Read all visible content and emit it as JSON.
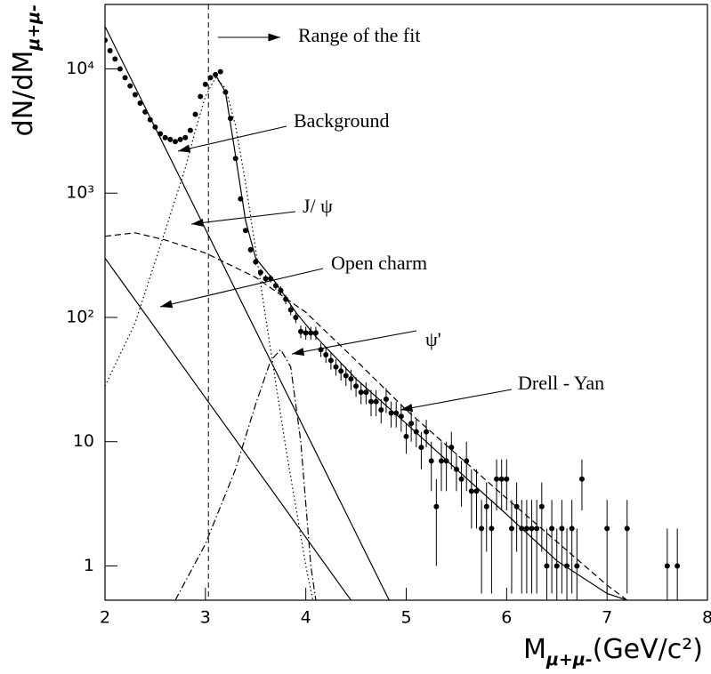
{
  "chart_data": {
    "type": "scatter",
    "ylabel": {
      "main": "dN/dM",
      "sub": "μ+μ-"
    },
    "xlabel": {
      "main": "M",
      "sub": "μ+μ-",
      "rest": "(GeV/c²)"
    },
    "log_y": true,
    "xlim": [
      2,
      8
    ],
    "ylim": [
      0.53,
      33000
    ],
    "xticks": [
      2,
      3,
      4,
      5,
      6,
      7,
      8
    ],
    "yticks": [
      1,
      10,
      {
        "value": 100,
        "label": "10²"
      },
      {
        "value": 1000,
        "label": "10³"
      },
      {
        "value": 10000,
        "label": "10⁴"
      }
    ],
    "fit_range_start": 3.03,
    "annotations": [
      "Range of the fit",
      "Background",
      "J/ ψ",
      "Open charm",
      "ψ'",
      "Drell - Yan"
    ],
    "points": {
      "color": "#000000",
      "x": [
        2.0,
        2.05,
        2.1,
        2.15,
        2.2,
        2.25,
        2.3,
        2.35,
        2.4,
        2.45,
        2.5,
        2.55,
        2.6,
        2.65,
        2.7,
        2.75,
        2.8,
        2.85,
        2.9,
        2.95,
        3.0,
        3.05,
        3.1,
        3.15,
        3.2,
        3.25,
        3.3,
        3.35,
        3.4,
        3.45,
        3.5,
        3.55,
        3.6,
        3.65,
        3.7,
        3.75,
        3.8,
        3.85,
        3.9,
        3.95,
        4.0,
        4.05,
        4.1,
        4.15,
        4.2,
        4.25,
        4.3,
        4.35,
        4.4,
        4.45,
        4.5,
        4.55,
        4.6,
        4.65,
        4.7,
        4.75,
        4.8,
        4.85,
        4.9,
        4.95,
        5.0,
        5.05,
        5.1,
        5.15,
        5.2,
        5.25,
        5.3,
        5.35,
        5.4,
        5.45,
        5.5,
        5.55,
        5.6,
        5.65,
        5.7,
        5.75,
        5.8,
        5.85,
        5.9,
        5.95,
        6.0,
        6.05,
        6.1,
        6.15,
        6.2,
        6.25,
        6.3,
        6.35,
        6.4,
        6.45,
        6.5,
        6.55,
        6.6,
        6.65,
        6.7,
        6.75,
        7.0,
        7.2,
        7.6,
        7.7
      ],
      "values": [
        17000,
        14000,
        12000,
        10000,
        8500,
        7300,
        6200,
        5300,
        4500,
        3900,
        3400,
        3000,
        2800,
        2700,
        2600,
        2700,
        2800,
        3200,
        4300,
        6000,
        7500,
        8500,
        9000,
        9500,
        6500,
        4000,
        1900,
        900,
        500,
        350,
        280,
        230,
        205,
        205,
        180,
        165,
        140,
        115,
        100,
        77,
        75,
        75,
        75,
        55,
        50,
        45,
        40,
        37,
        34,
        32,
        28,
        25,
        25,
        21,
        21,
        18,
        22,
        17,
        17,
        16,
        11,
        14,
        12,
        9,
        12,
        7,
        3,
        7,
        7,
        9,
        6,
        5,
        7,
        4,
        4,
        2,
        3,
        2,
        5,
        5,
        5,
        2,
        3,
        2,
        2,
        2,
        2,
        3,
        1,
        2,
        1,
        2,
        1,
        2,
        1,
        5,
        2,
        2,
        1,
        1
      ],
      "errors": [
        130,
        118,
        110,
        100,
        92,
        85,
        79,
        73,
        67,
        62,
        58,
        55,
        53,
        52,
        51,
        52,
        53,
        57,
        66,
        77,
        87,
        92,
        95,
        97,
        81,
        63,
        44,
        30,
        22,
        19,
        17,
        15,
        14,
        14,
        13,
        13,
        12,
        11,
        10,
        9,
        9,
        9,
        9,
        7,
        7,
        7,
        6,
        6,
        6,
        6,
        5,
        5,
        5,
        5,
        5,
        4,
        5,
        4,
        4,
        4,
        3,
        4,
        3,
        3,
        3,
        3,
        2,
        3,
        3,
        3,
        2,
        2,
        3,
        2,
        2,
        1.4,
        1.7,
        1.4,
        2.2,
        2.2,
        2.2,
        1.4,
        1.7,
        1.4,
        1.4,
        1.4,
        1.4,
        1.7,
        1,
        1.4,
        1,
        1.4,
        1,
        1.4,
        1,
        2.2,
        1.4,
        1.4,
        1,
        1
      ]
    },
    "curves": [
      {
        "style": "solid",
        "color": "#000000",
        "x": [
          2,
          4.83
        ],
        "values": [
          22000,
          0.53
        ]
      },
      {
        "style": "solid",
        "color": "#000000",
        "x": [
          2,
          4.45
        ],
        "values": [
          300,
          0.53
        ]
      },
      {
        "style": "dotted",
        "color": "#000000",
        "x": [
          2,
          2.3,
          2.6,
          2.8,
          2.9,
          3.0,
          3.1,
          3.2,
          3.3,
          3.4,
          3.5,
          3.6,
          3.7,
          3.8,
          3.9,
          4.0,
          4.07
        ],
        "values": [
          28,
          90,
          500,
          1600,
          3200,
          6000,
          8500,
          7000,
          3500,
          1200,
          350,
          100,
          30,
          9,
          3,
          1,
          0.53
        ]
      },
      {
        "style": "dashdot",
        "color": "#000000",
        "x": [
          2.7,
          3.0,
          3.3,
          3.5,
          3.65,
          3.75,
          3.85,
          3.95,
          4.05,
          4.1
        ],
        "values": [
          0.53,
          1.5,
          6,
          20,
          45,
          55,
          40,
          10,
          1,
          0.53
        ]
      },
      {
        "style": "dashed",
        "color": "#000000",
        "x": [
          2,
          2.3,
          2.6,
          3.0,
          3.5,
          4.0,
          4.5,
          5,
          6,
          7,
          7.2
        ],
        "values": [
          450,
          480,
          420,
          330,
          210,
          110,
          45,
          18,
          3.5,
          0.7,
          0.53
        ]
      },
      {
        "style": "solid",
        "color": "#000000",
        "x": [
          3.1,
          3.2,
          3.3,
          3.4,
          3.5,
          3.7,
          3.9,
          4.1,
          4.5,
          5,
          5.5,
          6,
          6.5,
          7,
          7.2
        ],
        "values": [
          9000,
          6500,
          2000,
          600,
          300,
          190,
          110,
          70,
          32,
          14,
          6,
          2.6,
          1.1,
          0.6,
          0.53
        ]
      }
    ]
  }
}
